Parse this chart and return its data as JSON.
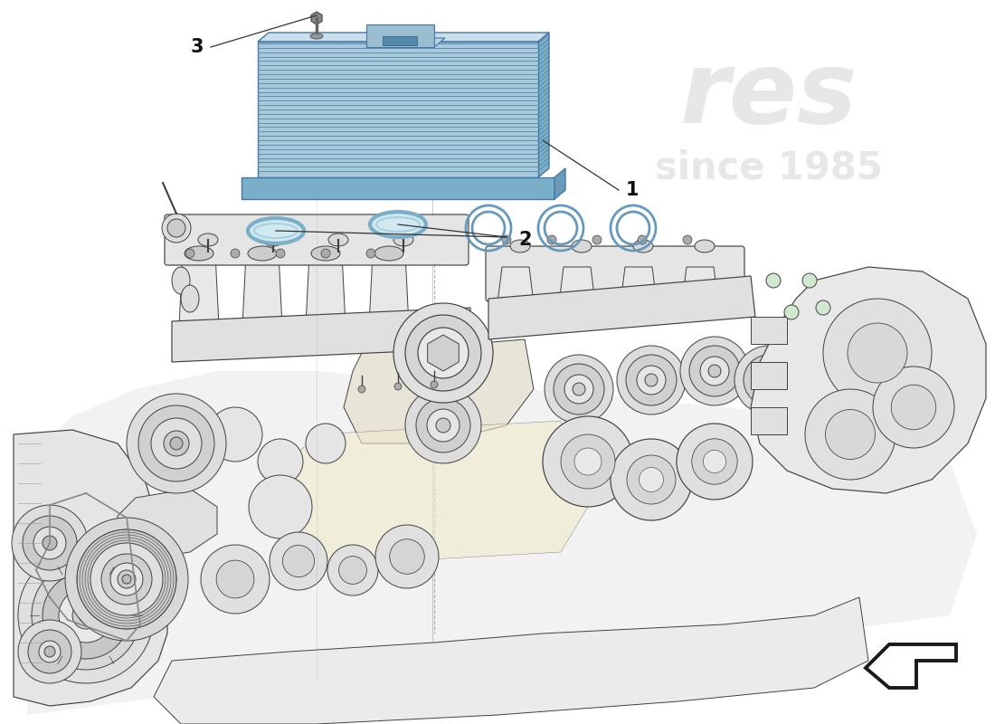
{
  "background_color": "#ffffff",
  "label_1": "1",
  "label_2": "2",
  "label_3": "3",
  "part_blue": "#a8c8dc",
  "part_blue_dark": "#7aafc8",
  "part_blue_light": "#cce0ec",
  "part_blue_mid": "#90bcd0",
  "engine_fill": "#f8f8f8",
  "engine_fill2": "#efefef",
  "engine_fill3": "#e8e8e8",
  "engine_stroke": "#404040",
  "label_font_size": 15,
  "line_color": "#333333",
  "watermark_color": "#d0d0d0",
  "arrow_color": "#1a1a1a"
}
